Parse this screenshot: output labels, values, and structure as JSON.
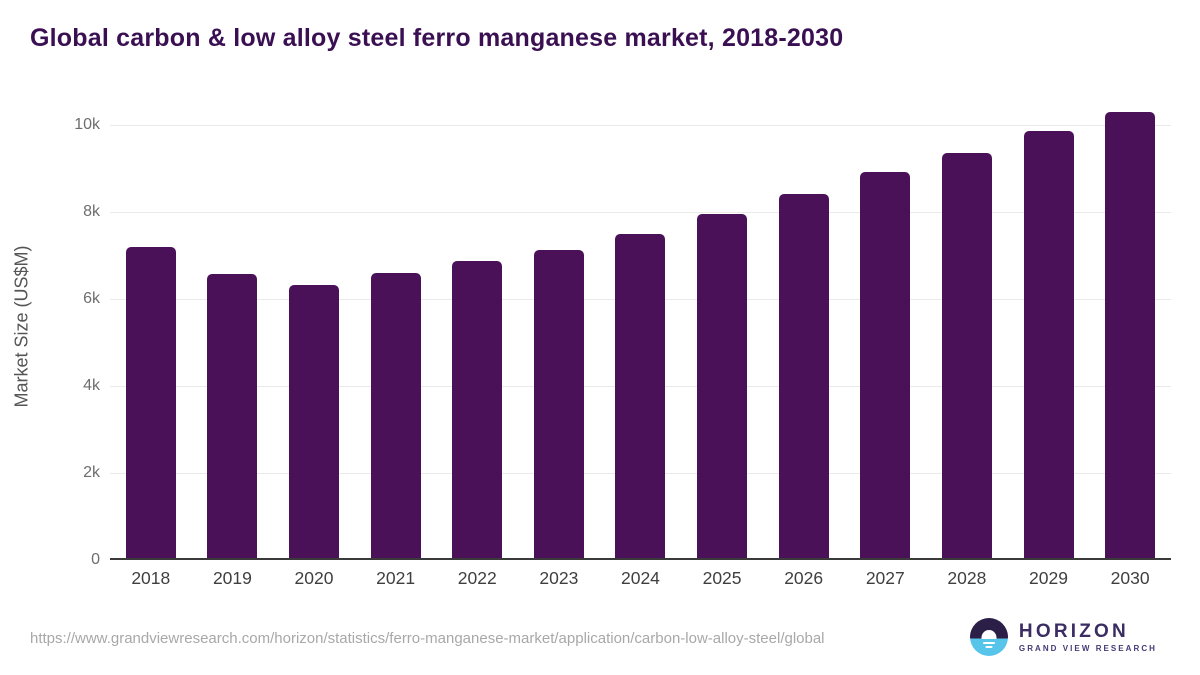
{
  "title": "Global carbon & low alloy steel ferro manganese market, 2018-2030",
  "chart_data": {
    "type": "bar",
    "title": "Global carbon & low alloy steel ferro manganese market, 2018-2030",
    "categories": [
      "2018",
      "2019",
      "2020",
      "2021",
      "2022",
      "2023",
      "2024",
      "2025",
      "2026",
      "2027",
      "2028",
      "2029",
      "2030"
    ],
    "values": [
      7200,
      6570,
      6310,
      6600,
      6870,
      7130,
      7500,
      7950,
      8420,
      8920,
      9350,
      9850,
      10300
    ],
    "xlabel": "",
    "ylabel": "Market Size (US$M)",
    "ylim": [
      0,
      10800
    ],
    "yticks": [
      {
        "value": 0,
        "label": "0"
      },
      {
        "value": 2000,
        "label": "2k"
      },
      {
        "value": 4000,
        "label": "4k"
      },
      {
        "value": 6000,
        "label": "6k"
      },
      {
        "value": 8000,
        "label": "8k"
      },
      {
        "value": 10000,
        "label": "10k"
      }
    ],
    "grid": "horizontal",
    "legend": "none",
    "bar_color": "#4a1159"
  },
  "colors": {
    "title": "#3b1053",
    "bar": "#4a1159",
    "gridline": "#e9e9e9",
    "axis_line": "#3a3a3a",
    "tick_label": "#6e6e6e",
    "x_label": "#3f3f3f",
    "url_text": "#a8a8a8",
    "logo_dark": "#2b1e47",
    "logo_blue": "#57c4ea",
    "logo_text": "#3b2d63"
  },
  "icons": {
    "logo_icon": "horizon-sun-icon"
  },
  "footer": {
    "source_url": "https://www.grandviewresearch.com/horizon/statistics/ferro-manganese-market/application/carbon-low-alloy-steel/global",
    "logo": {
      "brand": "HORIZON",
      "sub_brand": "GRAND VIEW RESEARCH"
    }
  }
}
